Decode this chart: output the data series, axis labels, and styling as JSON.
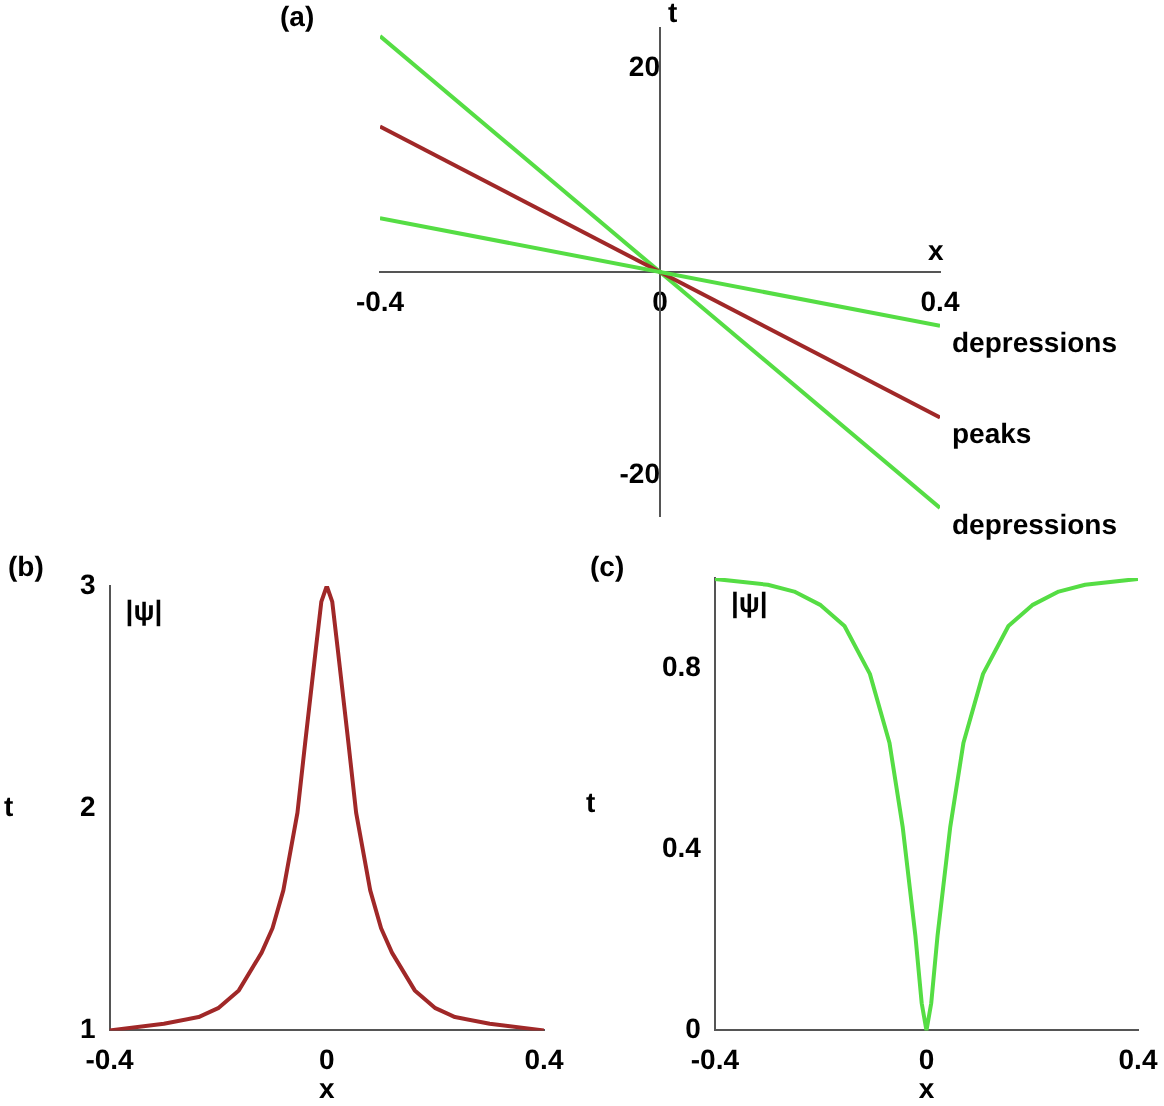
{
  "chart_data": [
    {
      "type": "line",
      "title": "(a)",
      "xlabel": "x",
      "ylabel": "t",
      "x": [
        -0.4,
        0.4
      ],
      "xlim": [
        -0.4,
        0.4
      ],
      "ylim": [
        -24,
        24
      ],
      "xticks": [
        -0.4,
        0,
        0.4
      ],
      "yticks": [
        -20,
        20
      ],
      "grid": false,
      "legend": false,
      "marker": "none",
      "series": [
        {
          "name": "depressions",
          "color": "#55dd44",
          "values": [
            5.3,
            -5.3
          ]
        },
        {
          "name": "peaks",
          "color": "#a02828",
          "values": [
            14.3,
            -14.3
          ]
        },
        {
          "name": "depressions",
          "color": "#55dd44",
          "values": [
            23.2,
            -23.2
          ]
        }
      ]
    },
    {
      "type": "line",
      "title": "(b)",
      "xlabel": "x",
      "ylabel": "t",
      "annotations": [
        "|ψ|"
      ],
      "x": [
        -0.4,
        -0.3,
        -0.236,
        -0.2,
        -0.162,
        -0.12,
        -0.1,
        -0.08,
        -0.054,
        -0.04,
        -0.02,
        -0.01,
        0,
        0.01,
        0.02,
        0.04,
        0.054,
        0.08,
        0.1,
        0.12,
        0.162,
        0.2,
        0.236,
        0.3,
        0.4
      ],
      "xlim": [
        -0.4,
        0.4
      ],
      "ylim": [
        1,
        3
      ],
      "xticks": [
        -0.4,
        0,
        0.4
      ],
      "yticks": [
        1,
        2,
        3
      ],
      "grid": false,
      "legend": false,
      "marker": "none",
      "series": [
        {
          "color": "#a02828",
          "values": [
            1.0,
            1.03,
            1.06,
            1.1,
            1.18,
            1.35,
            1.46,
            1.63,
            1.98,
            2.29,
            2.72,
            2.93,
            3,
            2.93,
            2.72,
            2.29,
            1.98,
            1.63,
            1.46,
            1.35,
            1.18,
            1.1,
            1.06,
            1.03,
            1.0
          ]
        }
      ]
    },
    {
      "type": "line",
      "title": "(c)",
      "xlabel": "x",
      "ylabel": "t",
      "annotations": [
        "|ψ|"
      ],
      "x": [
        -0.4,
        -0.3,
        -0.25,
        -0.2,
        -0.155,
        -0.107,
        -0.07,
        -0.045,
        -0.021,
        -0.009,
        0,
        0.009,
        0.021,
        0.045,
        0.07,
        0.107,
        0.155,
        0.2,
        0.25,
        0.3,
        0.4
      ],
      "xlim": [
        -0.4,
        0.4
      ],
      "ylim": [
        0,
        1
      ],
      "xticks": [
        -0.4,
        0,
        0.4
      ],
      "yticks": [
        0,
        0.4,
        0.8
      ],
      "grid": false,
      "legend": false,
      "marker": "none",
      "series": [
        {
          "color": "#55dd44",
          "values": [
            0.998,
            0.985,
            0.97,
            0.94,
            0.894,
            0.788,
            0.636,
            0.45,
            0.21,
            0.06,
            0,
            0.06,
            0.21,
            0.45,
            0.636,
            0.788,
            0.894,
            0.94,
            0.97,
            0.985,
            0.998
          ]
        }
      ]
    }
  ]
}
